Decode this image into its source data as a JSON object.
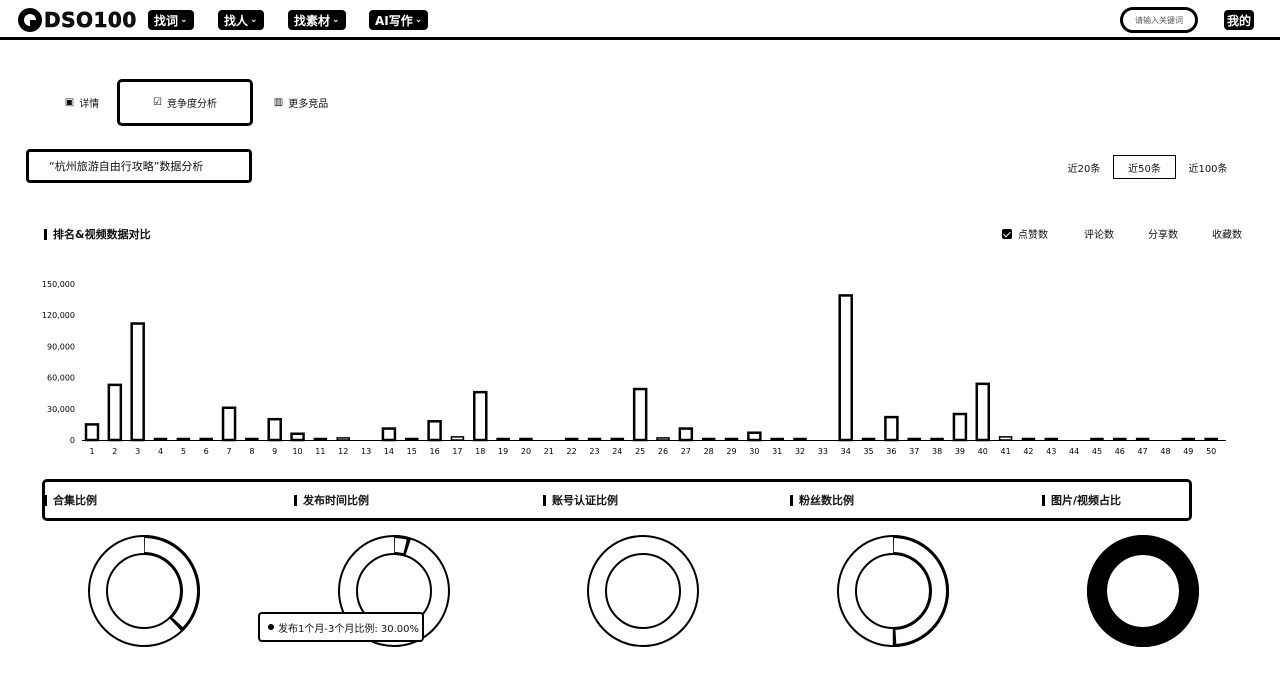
{
  "nav": {
    "logo": "DSO100",
    "items": [
      {
        "label": "找词"
      },
      {
        "label": "找人"
      },
      {
        "label": "找素材"
      },
      {
        "label": "AI写作"
      }
    ],
    "search_placeholder": "请输入关键词",
    "mine": "我的"
  },
  "tabs": [
    {
      "label": "详情",
      "icon": "detail-icon"
    },
    {
      "label": "竞争度分析",
      "icon": "analysis-icon"
    },
    {
      "label": "更多竞品",
      "icon": "bar-chart-icon"
    }
  ],
  "page_title": "“杭州旅游自由行攻略”数据分析",
  "ranges": [
    "近20条",
    "近50条",
    "近100条"
  ],
  "section_title": "排名&视频数据对比",
  "metrics": [
    {
      "label": "点赞数",
      "checked": true
    },
    {
      "label": "评论数",
      "checked": false
    },
    {
      "label": "分享数",
      "checked": false
    },
    {
      "label": "收藏数",
      "checked": false
    }
  ],
  "stats": [
    "合集比例",
    "发布时间比例",
    "账号认证比例",
    "粉丝数比例",
    "图片/视频占比"
  ],
  "tooltip": "发布1个月-3个月比例: 30.00%",
  "donuts": [
    {
      "fraction": 0.38
    },
    {
      "fraction": 0.05
    },
    {
      "fraction": 0
    },
    {
      "fraction": 0.5
    },
    {
      "fraction": 1
    }
  ],
  "chart_data": {
    "type": "bar",
    "categories": [
      "1",
      "2",
      "3",
      "4",
      "5",
      "6",
      "7",
      "8",
      "9",
      "10",
      "11",
      "12",
      "13",
      "14",
      "15",
      "16",
      "17",
      "18",
      "19",
      "20",
      "21",
      "22",
      "23",
      "24",
      "25",
      "26",
      "27",
      "28",
      "29",
      "30",
      "31",
      "32",
      "33",
      "34",
      "35",
      "36",
      "37",
      "38",
      "39",
      "40",
      "41",
      "42",
      "43",
      "44",
      "45",
      "46",
      "47",
      "48",
      "49",
      "50"
    ],
    "series": [
      {
        "values": [
          15000,
          53000,
          112000,
          1000,
          1000,
          500,
          31000,
          1000,
          20000,
          6000,
          1000,
          2000,
          0,
          11000,
          1000,
          18000,
          3000,
          46000,
          1000,
          500,
          0,
          1000,
          500,
          500,
          49000,
          2000,
          11000,
          500,
          500,
          7000,
          500,
          1000,
          0,
          139000,
          500,
          22000,
          500,
          500,
          25000,
          54000,
          3000,
          500,
          1000,
          0,
          500,
          500,
          500,
          0,
          500,
          1000
        ]
      }
    ],
    "yticks": [
      "0",
      "30,000",
      "60,000",
      "90,000",
      "120,000",
      "150,000"
    ],
    "ylim": [
      0,
      150000
    ]
  }
}
